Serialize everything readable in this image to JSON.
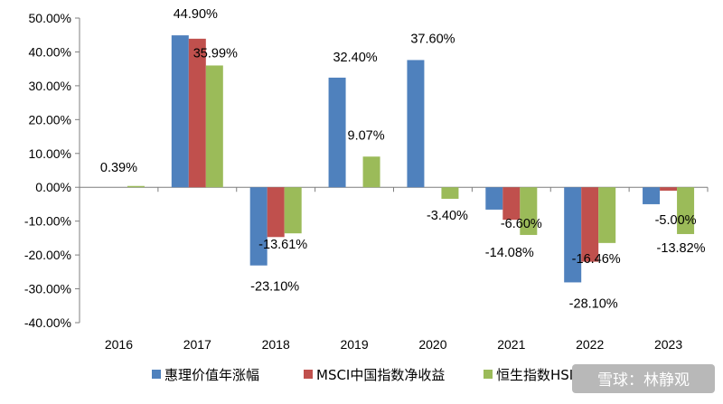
{
  "chart_data": {
    "type": "bar",
    "categories": [
      "2016",
      "2017",
      "2018",
      "2019",
      "2020",
      "2021",
      "2022",
      "2023"
    ],
    "series": [
      {
        "name": "惠理价值年涨幅",
        "color": "#4F81BD",
        "values": [
          null,
          44.9,
          -23.1,
          32.4,
          37.6,
          -6.6,
          -28.1,
          -5.0
        ]
      },
      {
        "name": "MSCI中国指数净收益",
        "color": "#C0504D",
        "values": [
          null,
          43.9,
          -14.7,
          null,
          null,
          -9.6,
          -22.0,
          -1.0
        ]
      },
      {
        "name": "恒生指数HSI",
        "color": "#9BBB59",
        "values": [
          0.39,
          35.99,
          -13.61,
          9.07,
          -3.4,
          -14.08,
          -16.46,
          -13.82
        ]
      }
    ],
    "data_labels": [
      {
        "text": "0.39%",
        "category": "2016",
        "value": 0.39
      },
      {
        "text": "44.90%",
        "category": "2017",
        "value": 44.9
      },
      {
        "text": "35.99%",
        "category": "2017",
        "value": 35.99
      },
      {
        "text": "-23.10%",
        "category": "2018",
        "value": -23.1
      },
      {
        "text": "-13.61%",
        "category": "2018",
        "value": -13.61
      },
      {
        "text": "32.40%",
        "category": "2019",
        "value": 32.4
      },
      {
        "text": "9.07%",
        "category": "2019",
        "value": 9.07
      },
      {
        "text": "37.60%",
        "category": "2020",
        "value": 37.6
      },
      {
        "text": "-3.40%",
        "category": "2020",
        "value": -3.4
      },
      {
        "text": "-6.60%",
        "category": "2021",
        "value": -6.6
      },
      {
        "text": "-14.08%",
        "category": "2021",
        "value": -14.08
      },
      {
        "text": "-28.10%",
        "category": "2022",
        "value": -28.1
      },
      {
        "text": "-16.46%",
        "category": "2022",
        "value": -16.46
      },
      {
        "text": "-5.00%",
        "category": "2023",
        "value": -5.0
      },
      {
        "text": "-13.82%",
        "category": "2023",
        "value": -13.82
      }
    ],
    "y_ticks": [
      "50.00%",
      "40.00%",
      "30.00%",
      "20.00%",
      "10.00%",
      "0.00%",
      "-10.00%",
      "-20.00%",
      "-30.00%",
      "-40.00%"
    ],
    "ylim": [
      -40,
      50
    ],
    "grid": false,
    "legend_position": "bottom",
    "title": "",
    "xlabel": "",
    "ylabel": ""
  },
  "watermark": {
    "text": "雪球：林静观"
  }
}
